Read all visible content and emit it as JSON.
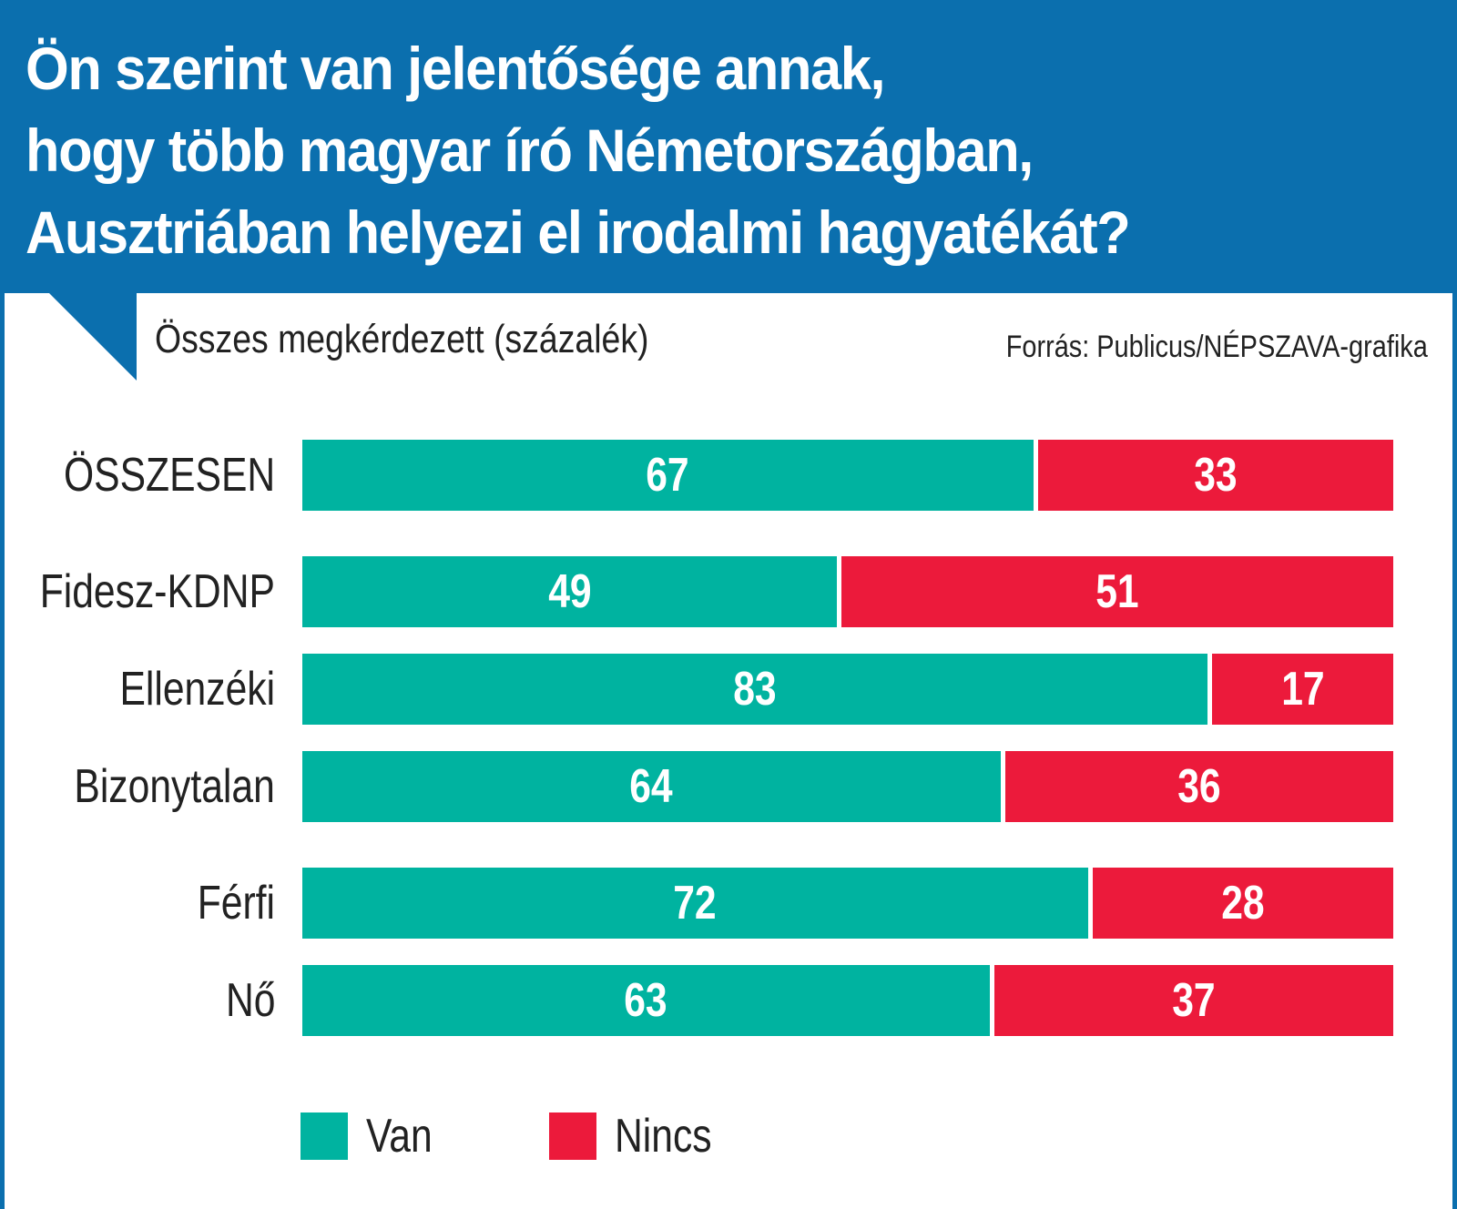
{
  "chart_data": {
    "type": "bar",
    "orientation": "horizontal",
    "stacked": true,
    "title": "Ön szerint van jelentősége annak,\nhogy több magyar író Németországban,\nAusztriában helyezi el irodalmi hagyatékát?",
    "subtitle": "Összes megkérdezett (százalék)",
    "source": "Forrás: Publicus/NÉPSZAVA-grafika",
    "categories": [
      "ÖSSZESEN",
      "Fidesz-KDNP",
      "Ellenzéki",
      "Bizonytalan",
      "Férfi",
      "Nő"
    ],
    "series": [
      {
        "name": "Van",
        "color": "#00b3a0",
        "values": [
          67,
          49,
          83,
          64,
          72,
          63
        ]
      },
      {
        "name": "Nincs",
        "color": "#ec1a3b",
        "values": [
          33,
          51,
          17,
          36,
          28,
          37
        ]
      }
    ],
    "xlim": [
      0,
      100
    ],
    "grid": false,
    "legend": "bottom-left",
    "header_color": "#0b6fae"
  }
}
